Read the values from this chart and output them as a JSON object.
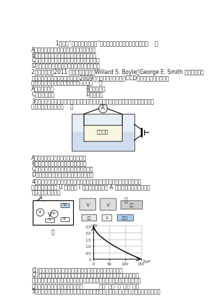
{
  "bg_color": "#ffffff",
  "text_color": "#222222",
  "font_size_main": 5.5,
  "font_size_small": 4.8,
  "graph_yticks": [
    "0",
    "0.5",
    "1.0",
    "1.5",
    "2.0",
    "2.5"
  ],
  "graph_xticks": [
    "0",
    "50",
    "100",
    "150"
  ]
}
